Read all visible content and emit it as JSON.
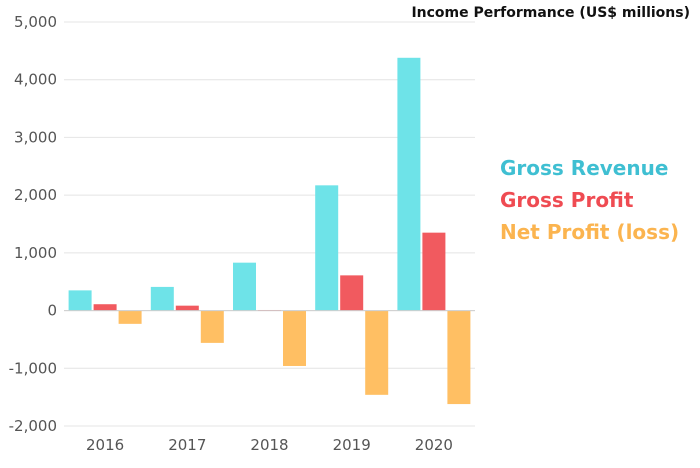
{
  "chart_data": {
    "type": "bar",
    "title": "Income Performance (US$ millions)",
    "xlabel": "",
    "ylabel": "",
    "categories": [
      "2016",
      "2017",
      "2018",
      "2019",
      "2020"
    ],
    "ylim": [
      -2000,
      5000
    ],
    "yticks": [
      5000,
      4000,
      3000,
      2000,
      1000,
      0,
      -1000,
      -2000
    ],
    "ytick_labels": [
      "5,000",
      "4,000",
      "3,000",
      "2,000",
      "1,000",
      "0",
      "-1,000",
      "-2,000"
    ],
    "grid": true,
    "legend_position": "right",
    "series": [
      {
        "name": "Gross Revenue",
        "color": "#6ee3e8",
        "legend_color": "#3fbfd2",
        "values": [
          350,
          410,
          830,
          2170,
          4380
        ]
      },
      {
        "name": "Gross Profit",
        "color": "#f15a5f",
        "legend_color": "#ef4b52",
        "values": [
          110,
          85,
          10,
          610,
          1350
        ]
      },
      {
        "name": "Net Profit (loss)",
        "color": "#ffbf63",
        "legend_color": "#fbb44f",
        "values": [
          -230,
          -560,
          -960,
          -1460,
          -1620
        ]
      }
    ]
  }
}
